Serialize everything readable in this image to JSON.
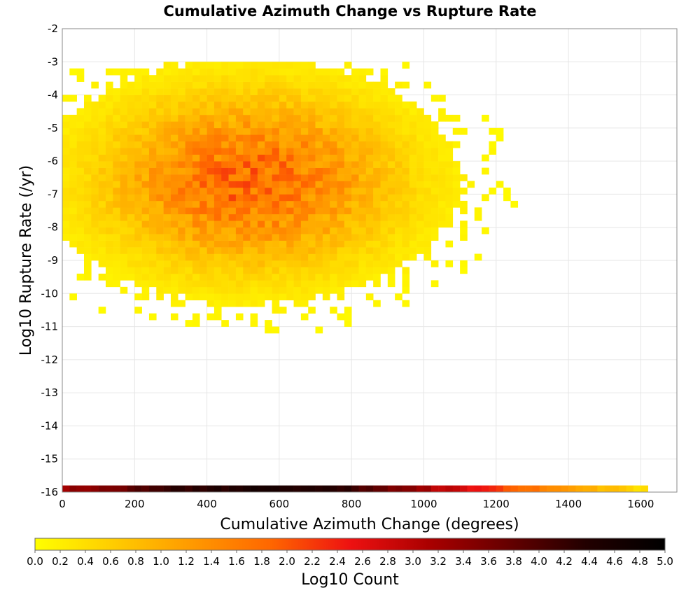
{
  "chart_data": {
    "type": "heatmap",
    "title": "Cumulative Azimuth Change vs Rupture Rate",
    "xlabel": "Cumulative Azimuth Change (degrees)",
    "ylabel": "Log10 Rupture Rate (/yr)",
    "xlim": [
      0,
      1700
    ],
    "ylim": [
      -16,
      -2
    ],
    "x_ticks": [
      "0",
      "200",
      "400",
      "600",
      "800",
      "1000",
      "1200",
      "1400",
      "1600"
    ],
    "y_ticks": [
      "-2",
      "-3",
      "-4",
      "-5",
      "-6",
      "-7",
      "-8",
      "-9",
      "-10",
      "-11",
      "-12",
      "-13",
      "-14",
      "-15",
      "-16"
    ],
    "grid": true,
    "bin_size": {
      "x": 20,
      "y": 0.2
    },
    "density_core": {
      "x_center": 520,
      "y_center": -6.6,
      "x_spread": 280,
      "y_spread": 1.8,
      "peak_log10_count": 1.9
    },
    "bottom_row": {
      "y_value": -15.9,
      "x_range": [
        0,
        1620
      ],
      "log10_count_profile": [
        {
          "x": 0,
          "value": 3.2
        },
        {
          "x": 300,
          "value": 4.2
        },
        {
          "x": 550,
          "value": 4.6
        },
        {
          "x": 800,
          "value": 4.2
        },
        {
          "x": 1000,
          "value": 3.2
        },
        {
          "x": 1200,
          "value": 2.2
        },
        {
          "x": 1400,
          "value": 1.3
        },
        {
          "x": 1620,
          "value": 0.3
        }
      ]
    },
    "colorbar": {
      "label": "Log10 Count",
      "range": [
        0.0,
        5.0
      ],
      "ticks": [
        "0.0",
        "0.2",
        "0.4",
        "0.6",
        "0.8",
        "1.0",
        "1.2",
        "1.4",
        "1.6",
        "1.8",
        "2.0",
        "2.2",
        "2.4",
        "2.6",
        "2.8",
        "3.0",
        "3.2",
        "3.4",
        "3.6",
        "3.8",
        "4.0",
        "4.2",
        "4.4",
        "4.6",
        "4.8",
        "5.0"
      ],
      "color_stops": [
        "#ffff00",
        "#ffcc00",
        "#ff9900",
        "#ff6600",
        "#ee1111",
        "#aa0000",
        "#660000",
        "#220000",
        "#000000"
      ]
    }
  }
}
